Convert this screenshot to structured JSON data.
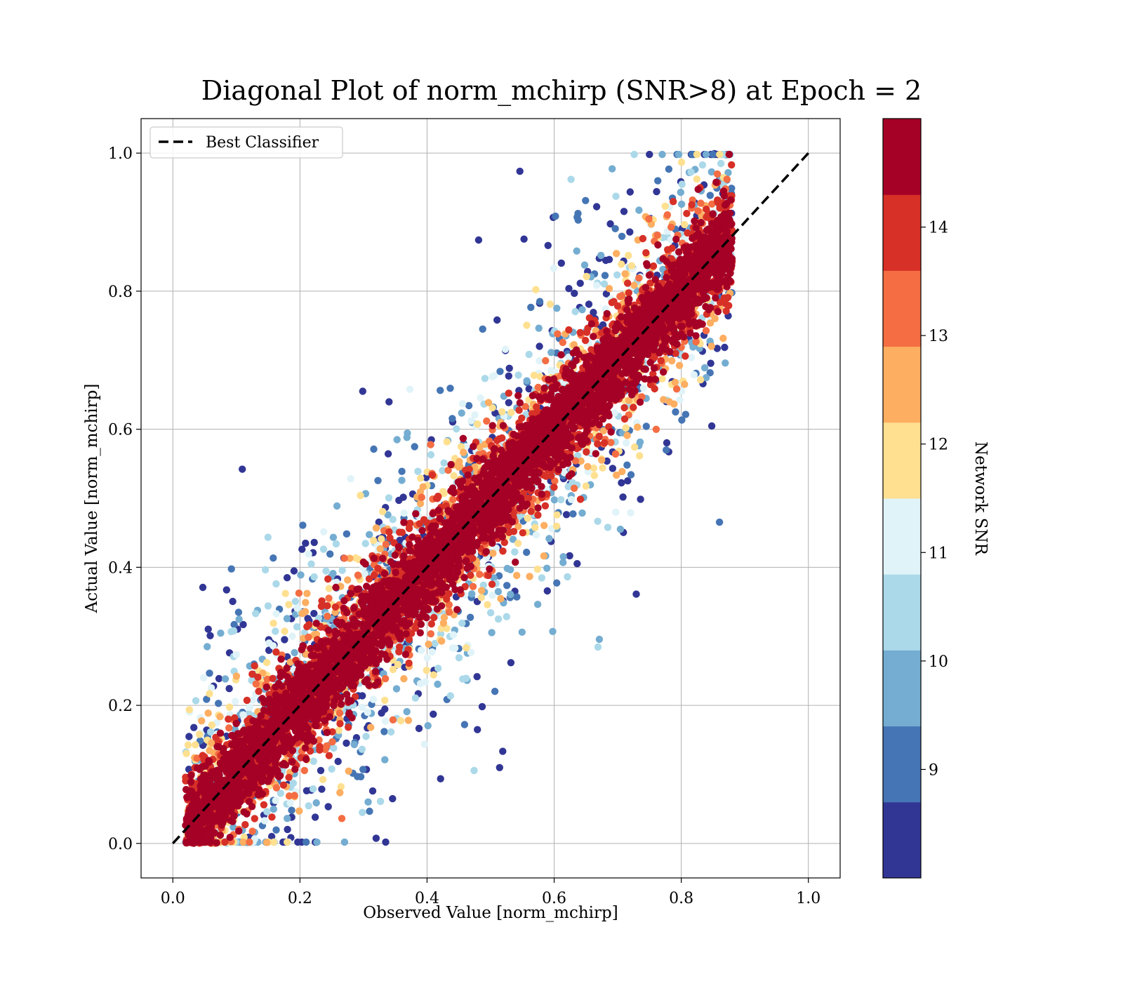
{
  "chart_data": {
    "type": "scatter",
    "title": "Diagonal Plot of norm_mchirp (SNR>8) at Epoch = 2",
    "xlabel": "Observed Value [norm_mchirp]",
    "ylabel": "Actual Value [norm_mchirp]",
    "xlim": [
      -0.05,
      1.05
    ],
    "ylim": [
      -0.05,
      1.05
    ],
    "x_ticks": [
      "0.0",
      "0.2",
      "0.4",
      "0.6",
      "0.8",
      "1.0"
    ],
    "y_ticks": [
      "0.0",
      "0.2",
      "0.4",
      "0.6",
      "0.8",
      "1.0"
    ],
    "grid": true,
    "legend": {
      "position": "upper-left",
      "entries": [
        {
          "label": "Best Classifier",
          "style": "dashed",
          "color": "#000000"
        }
      ]
    },
    "reference_line": {
      "name": "Best Classifier",
      "x": [
        0,
        1
      ],
      "y": [
        0,
        1
      ]
    },
    "colorbar": {
      "label": "Network SNR",
      "range": [
        8,
        15
      ],
      "ticks": [
        "9",
        "10",
        "11",
        "12",
        "13",
        "14"
      ],
      "tick_values": [
        9,
        10,
        11,
        12,
        13,
        14
      ],
      "colors": [
        "#313695",
        "#4575b4",
        "#74add1",
        "#abd9e9",
        "#e0f3f8",
        "#fee090",
        "#fdae61",
        "#f46d43",
        "#d73027",
        "#a50026"
      ]
    },
    "scatter_description": {
      "point_count_approx": 15000,
      "x_range": [
        0.02,
        0.88
      ],
      "y_range": [
        0.0,
        1.0
      ],
      "trend": "y ≈ x, dense high-SNR core around diagonal, low-SNR points scattered wider"
    }
  }
}
